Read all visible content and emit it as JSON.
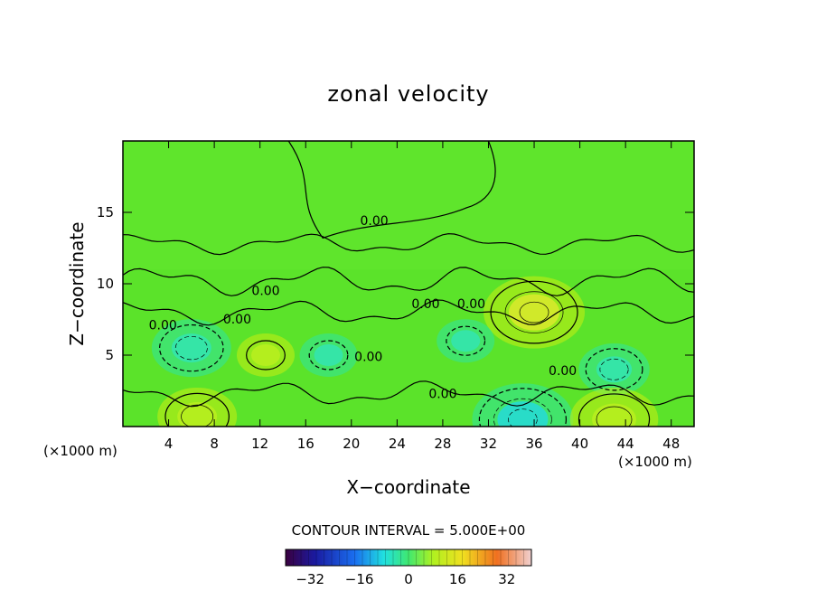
{
  "chart_data": {
    "type": "heatmap",
    "title": "zonal velocity",
    "xlabel": "X−coordinate",
    "ylabel": "Z−coordinate",
    "x_unit": "(×1000 m)",
    "z_unit": "(×1000 m)",
    "xlim": [
      0,
      50
    ],
    "ylim": [
      0,
      20
    ],
    "x_ticks": [
      4,
      8,
      12,
      16,
      20,
      24,
      28,
      32,
      36,
      40,
      44,
      48
    ],
    "y_ticks": [
      5,
      10,
      15
    ],
    "contour_interval_text": "CONTOUR INTERVAL = 5.000E+00",
    "contour_labels": [
      "0.00",
      "0.00",
      "0.00",
      "0.00",
      "0.00",
      "0.00",
      "0.00",
      "0.00",
      "0.00"
    ],
    "colorbar": {
      "min": -40,
      "max": 40,
      "ticks": [
        -32,
        -16,
        0,
        16,
        32
      ],
      "tick_labels": [
        "−32",
        "−16",
        "0",
        "16",
        "32"
      ]
    },
    "features": [
      {
        "x": 36,
        "z": 8,
        "value": 15,
        "kind": "max"
      },
      {
        "x": 6,
        "z": 5.5,
        "value": -10,
        "kind": "min"
      },
      {
        "x": 43,
        "z": 4,
        "value": -8,
        "kind": "min"
      },
      {
        "x": 35,
        "z": 0.5,
        "value": -15,
        "kind": "min"
      },
      {
        "x": 6.5,
        "z": 0.7,
        "value": 10,
        "kind": "max"
      },
      {
        "x": 43,
        "z": 0.5,
        "value": 12,
        "kind": "max"
      },
      {
        "x": 18,
        "z": 5,
        "value": -5,
        "kind": "min"
      },
      {
        "x": 30,
        "z": 6,
        "value": -5,
        "kind": "min"
      },
      {
        "x": 12.5,
        "z": 5,
        "value": 5,
        "kind": "max"
      }
    ],
    "colors": {
      "background": "#5be32a",
      "zero_band": "#5fe62c",
      "positive": "#c8ef10",
      "negative": "#2ee6a0"
    }
  }
}
